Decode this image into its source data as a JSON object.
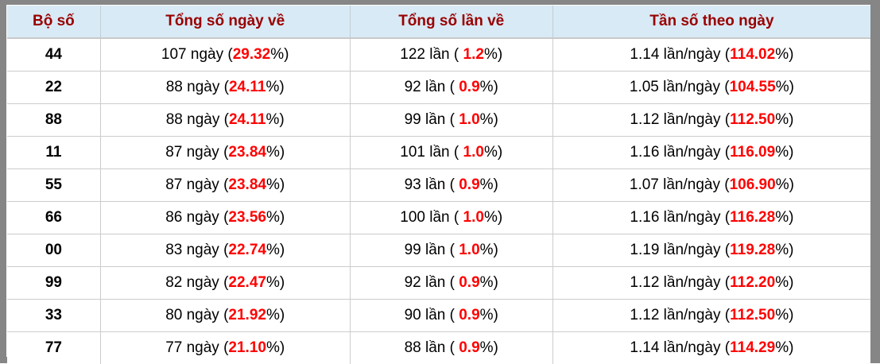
{
  "table": {
    "columns": [
      {
        "label": "Bộ số"
      },
      {
        "label": "Tổng số ngày về"
      },
      {
        "label": "Tổng số lần về"
      },
      {
        "label": "Tần số theo ngày"
      }
    ],
    "rows": [
      {
        "pair": "44",
        "cells": [
          {
            "pre": "107 ngày (",
            "red": "29.32",
            "post": "%)"
          },
          {
            "pre": "122 lần ( ",
            "red": "1.2",
            "post": "%)"
          },
          {
            "pre": "1.14 lần/ngày (",
            "red": "114.02",
            "post": "%)"
          }
        ]
      },
      {
        "pair": "22",
        "cells": [
          {
            "pre": "88 ngày (",
            "red": "24.11",
            "post": "%)"
          },
          {
            "pre": "92 lần ( ",
            "red": "0.9",
            "post": "%)"
          },
          {
            "pre": "1.05 lần/ngày (",
            "red": "104.55",
            "post": "%)"
          }
        ]
      },
      {
        "pair": "88",
        "cells": [
          {
            "pre": "88 ngày (",
            "red": "24.11",
            "post": "%)"
          },
          {
            "pre": "99 lần ( ",
            "red": "1.0",
            "post": "%)"
          },
          {
            "pre": "1.12 lần/ngày (",
            "red": "112.50",
            "post": "%)"
          }
        ]
      },
      {
        "pair": "11",
        "cells": [
          {
            "pre": "87 ngày (",
            "red": "23.84",
            "post": "%)"
          },
          {
            "pre": "101 lần ( ",
            "red": "1.0",
            "post": "%)"
          },
          {
            "pre": "1.16 lần/ngày (",
            "red": "116.09",
            "post": "%)"
          }
        ]
      },
      {
        "pair": "55",
        "cells": [
          {
            "pre": "87 ngày (",
            "red": "23.84",
            "post": "%)"
          },
          {
            "pre": "93 lần ( ",
            "red": "0.9",
            "post": "%)"
          },
          {
            "pre": "1.07 lần/ngày (",
            "red": "106.90",
            "post": "%)"
          }
        ]
      },
      {
        "pair": "66",
        "cells": [
          {
            "pre": "86 ngày (",
            "red": "23.56",
            "post": "%)"
          },
          {
            "pre": "100 lần ( ",
            "red": "1.0",
            "post": "%)"
          },
          {
            "pre": "1.16 lần/ngày (",
            "red": "116.28",
            "post": "%)"
          }
        ]
      },
      {
        "pair": "00",
        "cells": [
          {
            "pre": "83 ngày (",
            "red": "22.74",
            "post": "%)"
          },
          {
            "pre": "99 lần ( ",
            "red": "1.0",
            "post": "%)"
          },
          {
            "pre": "1.19 lần/ngày (",
            "red": "119.28",
            "post": "%)"
          }
        ]
      },
      {
        "pair": "99",
        "cells": [
          {
            "pre": "82 ngày (",
            "red": "22.47",
            "post": "%)"
          },
          {
            "pre": "92 lần ( ",
            "red": "0.9",
            "post": "%)"
          },
          {
            "pre": "1.12 lần/ngày (",
            "red": "112.20",
            "post": "%)"
          }
        ]
      },
      {
        "pair": "33",
        "cells": [
          {
            "pre": "80 ngày (",
            "red": "21.92",
            "post": "%)"
          },
          {
            "pre": "90 lần ( ",
            "red": "0.9",
            "post": "%)"
          },
          {
            "pre": "1.12 lần/ngày (",
            "red": "112.50",
            "post": "%)"
          }
        ]
      },
      {
        "pair": "77",
        "cells": [
          {
            "pre": "77 ngày (",
            "red": "21.10",
            "post": "%)"
          },
          {
            "pre": "88 lần ( ",
            "red": "0.9",
            "post": "%)"
          },
          {
            "pre": "1.14 lần/ngày (",
            "red": "114.29",
            "post": "%)"
          }
        ]
      }
    ]
  },
  "colors": {
    "header_bg": "#d8eaf5",
    "header_text": "#990000",
    "highlight_red": "#ff0000",
    "frame_gray": "#868686",
    "grid_line": "#cccccc",
    "body_text": "#000000"
  }
}
